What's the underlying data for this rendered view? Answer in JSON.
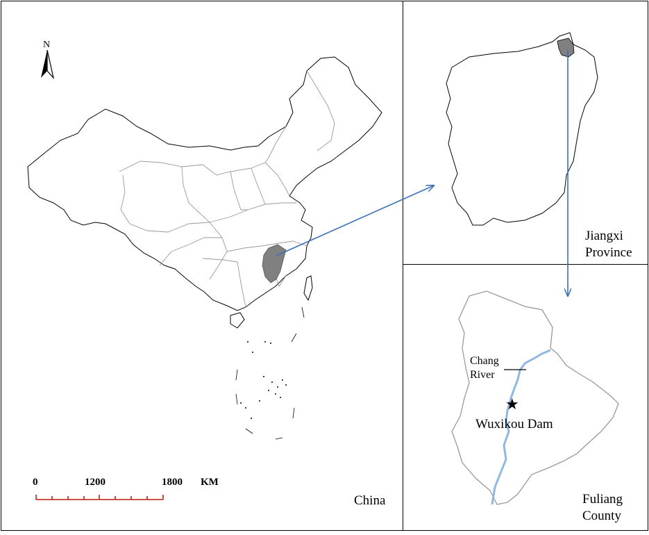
{
  "north_arrow": {
    "letter": "N"
  },
  "scale_bar": {
    "labels": [
      "0",
      "1200",
      "1800"
    ],
    "unit": "KM",
    "color": "#c0392b"
  },
  "panels": {
    "china": {
      "label": "China"
    },
    "jiangxi": {
      "label_line1": "Jiangxi",
      "label_line2": "Province"
    },
    "fuliang": {
      "label_line1": "Fuliang",
      "label_line2": "County",
      "river_line1": "Chang",
      "river_line2": "River",
      "dam_label": "Wuxikou Dam",
      "dam_icon": "star-icon"
    }
  },
  "colors": {
    "highlight_fill": "#808080",
    "arrow": "#3b6fb6",
    "river": "#8fb8e0",
    "boundary": "#999999",
    "outline": "#000000"
  }
}
